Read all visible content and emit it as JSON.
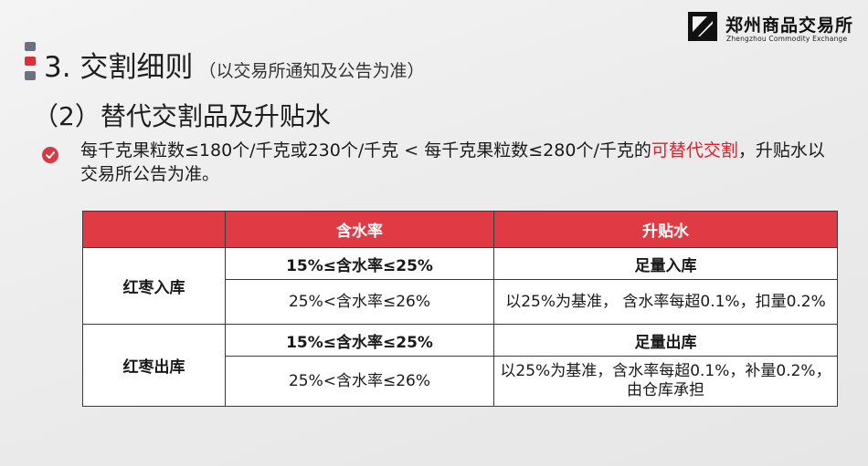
{
  "logo": {
    "name_cn": "郑州商品交易所",
    "name_en": "Zhengzhou Commodity Exchange"
  },
  "title": {
    "main": "3. 交割细则",
    "note": "（以交易所通知及公告为准）"
  },
  "subtitle": "（2）替代交割品及升贴水",
  "bullet": {
    "text_before": "每千克果粒数≤180个/千克或230个/千克 < 每千克果粒数≤280个/千克的",
    "highlight": "可替代交割",
    "text_after": "，升贴水以交易所公告为准。"
  },
  "table": {
    "headers": [
      "",
      "含水率",
      "升贴水"
    ],
    "groups": [
      {
        "label": "红枣入库",
        "rows": [
          {
            "moisture": "15%≤含水率≤25%",
            "adjustment": "足量入库",
            "emphasis": true
          },
          {
            "moisture": "25%<含水率≤26%",
            "adjustment": "以25%为基准， 含水率每超0.1%，扣量0.2%",
            "emphasis": false
          }
        ]
      },
      {
        "label": "红枣出库",
        "rows": [
          {
            "moisture": "15%≤含水率≤25%",
            "adjustment": "足量出库",
            "emphasis": true
          },
          {
            "moisture": "25%<含水率≤26%",
            "adjustment": "以25%为基准，含水率每超0.1%，补量0.2%，由仓库承担",
            "emphasis": false
          }
        ]
      }
    ]
  },
  "colors": {
    "accent_red": "#e03a45",
    "highlight_red": "#e0202c",
    "bar_gray": "#6b7180"
  }
}
